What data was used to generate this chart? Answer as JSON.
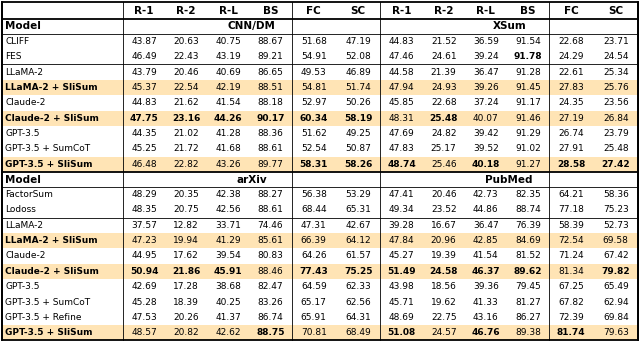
{
  "col_headers": [
    "",
    "R-1",
    "R-2",
    "R-L",
    "BS",
    "FC",
    "SC",
    "R-1",
    "R-2",
    "R-L",
    "BS",
    "FC",
    "SC"
  ],
  "top_rows": [
    {
      "model": "CLIFF",
      "bold_model": false,
      "highlight": false,
      "data": [
        43.87,
        20.63,
        40.75,
        88.67,
        51.68,
        47.19,
        44.83,
        21.52,
        36.59,
        91.54,
        22.68,
        23.71
      ],
      "bold_data": [
        false,
        false,
        false,
        false,
        false,
        false,
        false,
        false,
        false,
        false,
        false,
        false
      ]
    },
    {
      "model": "FES",
      "bold_model": false,
      "highlight": false,
      "data": [
        46.49,
        22.43,
        43.19,
        89.21,
        54.91,
        52.08,
        47.46,
        24.61,
        39.24,
        91.78,
        24.29,
        24.54
      ],
      "bold_data": [
        false,
        false,
        false,
        false,
        false,
        false,
        false,
        false,
        false,
        true,
        false,
        false
      ]
    },
    {
      "model": "LLaMA-2",
      "bold_model": false,
      "highlight": false,
      "data": [
        43.79,
        20.46,
        40.69,
        86.65,
        49.53,
        46.89,
        44.58,
        21.39,
        36.47,
        91.28,
        22.61,
        25.34
      ],
      "bold_data": [
        false,
        false,
        false,
        false,
        false,
        false,
        false,
        false,
        false,
        false,
        false,
        false
      ]
    },
    {
      "model": "LLaMA-2 + SliSum",
      "bold_model": true,
      "highlight": true,
      "data": [
        45.37,
        22.54,
        42.19,
        88.51,
        54.81,
        51.74,
        47.94,
        24.93,
        39.26,
        91.45,
        27.83,
        25.76
      ],
      "bold_data": [
        false,
        false,
        false,
        false,
        false,
        false,
        false,
        false,
        false,
        false,
        false,
        false
      ]
    },
    {
      "model": "Claude-2",
      "bold_model": false,
      "highlight": false,
      "data": [
        44.83,
        21.62,
        41.54,
        88.18,
        52.97,
        50.26,
        45.85,
        22.68,
        37.24,
        91.17,
        24.35,
        23.56
      ],
      "bold_data": [
        false,
        false,
        false,
        false,
        false,
        false,
        false,
        false,
        false,
        false,
        false,
        false
      ]
    },
    {
      "model": "Claude-2 + SliSum",
      "bold_model": true,
      "highlight": true,
      "data": [
        47.75,
        23.16,
        44.26,
        90.17,
        60.34,
        58.19,
        48.31,
        25.48,
        40.07,
        91.46,
        27.19,
        26.84
      ],
      "bold_data": [
        true,
        true,
        true,
        true,
        true,
        true,
        false,
        true,
        false,
        false,
        false,
        false
      ]
    },
    {
      "model": "GPT-3.5",
      "bold_model": false,
      "highlight": false,
      "data": [
        44.35,
        21.02,
        41.28,
        88.36,
        51.62,
        49.25,
        47.69,
        24.82,
        39.42,
        91.29,
        26.74,
        23.79
      ],
      "bold_data": [
        false,
        false,
        false,
        false,
        false,
        false,
        false,
        false,
        false,
        false,
        false,
        false
      ]
    },
    {
      "model": "GPT-3.5 + SumCoT",
      "bold_model": false,
      "highlight": false,
      "data": [
        45.25,
        21.72,
        41.68,
        88.61,
        52.54,
        50.87,
        47.83,
        25.17,
        39.52,
        91.02,
        27.91,
        25.48
      ],
      "bold_data": [
        false,
        false,
        false,
        false,
        false,
        false,
        false,
        false,
        false,
        false,
        false,
        false
      ]
    },
    {
      "model": "GPT-3.5 + SliSum",
      "bold_model": true,
      "highlight": true,
      "data": [
        46.48,
        22.82,
        43.26,
        89.77,
        58.31,
        58.26,
        48.74,
        25.46,
        40.18,
        91.27,
        28.58,
        27.42
      ],
      "bold_data": [
        false,
        false,
        false,
        false,
        true,
        true,
        true,
        false,
        true,
        false,
        true,
        true
      ]
    }
  ],
  "bot_rows": [
    {
      "model": "FactorSum",
      "bold_model": false,
      "highlight": false,
      "data": [
        48.29,
        20.35,
        42.38,
        88.27,
        56.38,
        53.29,
        47.41,
        20.46,
        42.73,
        82.35,
        64.21,
        58.36
      ],
      "bold_data": [
        false,
        false,
        false,
        false,
        false,
        false,
        false,
        false,
        false,
        false,
        false,
        false
      ]
    },
    {
      "model": "Lodoss",
      "bold_model": false,
      "highlight": false,
      "data": [
        48.35,
        20.75,
        42.56,
        88.61,
        68.44,
        65.31,
        49.34,
        23.52,
        44.86,
        88.74,
        77.18,
        75.23
      ],
      "bold_data": [
        false,
        false,
        false,
        false,
        false,
        false,
        false,
        false,
        false,
        false,
        false,
        false
      ]
    },
    {
      "model": "LLaMA-2",
      "bold_model": false,
      "highlight": false,
      "data": [
        37.57,
        12.82,
        33.71,
        74.46,
        47.31,
        42.67,
        39.28,
        16.67,
        36.47,
        76.39,
        58.39,
        52.73
      ],
      "bold_data": [
        false,
        false,
        false,
        false,
        false,
        false,
        false,
        false,
        false,
        false,
        false,
        false
      ]
    },
    {
      "model": "LLaMA-2 + SliSum",
      "bold_model": true,
      "highlight": true,
      "data": [
        47.23,
        19.94,
        41.29,
        85.61,
        66.39,
        64.12,
        47.84,
        20.96,
        42.85,
        84.69,
        72.54,
        69.58
      ],
      "bold_data": [
        false,
        false,
        false,
        false,
        false,
        false,
        false,
        false,
        false,
        false,
        false,
        false
      ]
    },
    {
      "model": "Claude-2",
      "bold_model": false,
      "highlight": false,
      "data": [
        44.95,
        17.62,
        39.54,
        80.83,
        64.26,
        61.57,
        45.27,
        19.39,
        41.54,
        81.52,
        71.24,
        67.42
      ],
      "bold_data": [
        false,
        false,
        false,
        false,
        false,
        false,
        false,
        false,
        false,
        false,
        false,
        false
      ]
    },
    {
      "model": "Claude-2 + SliSum",
      "bold_model": true,
      "highlight": true,
      "data": [
        50.94,
        21.86,
        45.91,
        88.46,
        77.43,
        75.25,
        51.49,
        24.58,
        46.37,
        89.62,
        81.34,
        79.82
      ],
      "bold_data": [
        true,
        true,
        true,
        false,
        true,
        true,
        true,
        true,
        true,
        true,
        false,
        true
      ]
    },
    {
      "model": "GPT-3.5",
      "bold_model": false,
      "highlight": false,
      "data": [
        42.69,
        17.28,
        38.68,
        82.47,
        64.59,
        62.33,
        43.98,
        18.56,
        39.36,
        79.45,
        67.25,
        65.49
      ],
      "bold_data": [
        false,
        false,
        false,
        false,
        false,
        false,
        false,
        false,
        false,
        false,
        false,
        false
      ]
    },
    {
      "model": "GPT-3.5 + SumCoT",
      "bold_model": false,
      "highlight": false,
      "data": [
        45.28,
        18.39,
        40.25,
        83.26,
        65.17,
        62.56,
        45.71,
        19.62,
        41.33,
        81.27,
        67.82,
        62.94
      ],
      "bold_data": [
        false,
        false,
        false,
        false,
        false,
        false,
        false,
        false,
        false,
        false,
        false,
        false
      ]
    },
    {
      "model": "GPT-3.5 + Refine",
      "bold_model": false,
      "highlight": false,
      "data": [
        47.53,
        20.26,
        41.37,
        86.74,
        65.91,
        64.31,
        48.69,
        22.75,
        43.16,
        86.27,
        72.39,
        69.84
      ],
      "bold_data": [
        false,
        false,
        false,
        false,
        false,
        false,
        false,
        false,
        false,
        false,
        false,
        false
      ]
    },
    {
      "model": "GPT-3.5 + SliSum",
      "bold_model": true,
      "highlight": true,
      "data": [
        48.57,
        20.82,
        42.62,
        88.75,
        70.81,
        68.49,
        51.08,
        24.57,
        46.76,
        89.38,
        81.74,
        79.63
      ],
      "bold_data": [
        false,
        false,
        false,
        true,
        false,
        false,
        true,
        false,
        true,
        false,
        true,
        false
      ]
    }
  ],
  "highlight_color": "#FFE4B5",
  "font_size": 6.5,
  "font_size_header": 7.5,
  "col_widths_rel": [
    1.55,
    0.54,
    0.54,
    0.54,
    0.54,
    0.57,
    0.57,
    0.54,
    0.54,
    0.54,
    0.54,
    0.57,
    0.57
  ]
}
